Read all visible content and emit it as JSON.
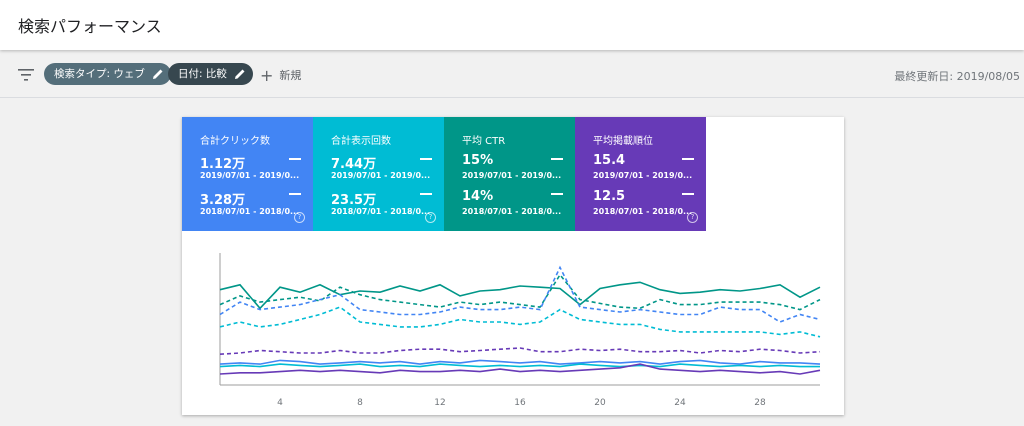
{
  "header": {
    "title": "検索パフォーマンス"
  },
  "toolbar": {
    "filter_chips": [
      {
        "label": "検索タイプ: ウェブ"
      },
      {
        "label": "日付: 比較"
      }
    ],
    "new_label": "新規",
    "last_updated": "最終更新日: 2019/08/05"
  },
  "metrics": [
    {
      "name": "合計クリック数",
      "value1": "1.12万",
      "range1": "2019/07/01 - 2019/0...",
      "value2": "3.28万",
      "range2": "2018/07/01 - 2018/0...",
      "color": "#4285f4"
    },
    {
      "name": "合計表示回数",
      "value1": "7.44万",
      "range1": "2019/07/01 - 2019/0...",
      "value2": "23.5万",
      "range2": "2018/07/01 - 2018/0...",
      "color": "#00bcd4"
    },
    {
      "name": "平均 CTR",
      "value1": "15%",
      "range1": "2019/07/01 - 2019/0...",
      "value2": "14%",
      "range2": "2018/07/01 - 2018/0...",
      "color": "#009688"
    },
    {
      "name": "平均掲載順位",
      "value1": "15.4",
      "range1": "2019/07/01 - 2019/0...",
      "value2": "12.5",
      "range2": "2018/07/01 - 2018/0...",
      "color": "#673ab7"
    }
  ],
  "chart_data": {
    "type": "line",
    "x": [
      1,
      2,
      3,
      4,
      5,
      6,
      7,
      8,
      9,
      10,
      11,
      12,
      13,
      14,
      15,
      16,
      17,
      18,
      19,
      20,
      21,
      22,
      23,
      24,
      25,
      26,
      27,
      28,
      29,
      30,
      31
    ],
    "xticks": [
      "4",
      "8",
      "12",
      "16",
      "20",
      "24",
      "28"
    ],
    "grid": false,
    "series": [
      {
        "color": "#009688",
        "dash": false,
        "values": [
          72,
          76,
          57,
          74,
          70,
          76,
          68,
          71,
          70,
          75,
          71,
          76,
          67,
          71,
          72,
          75,
          74,
          73,
          60,
          73,
          76,
          78,
          72,
          69,
          70,
          72,
          71,
          73,
          76,
          66,
          74
        ]
      },
      {
        "color": "#009688",
        "dash": true,
        "values": [
          60,
          67,
          62,
          64,
          66,
          63,
          74,
          68,
          64,
          62,
          60,
          58,
          62,
          60,
          62,
          60,
          58,
          84,
          64,
          61,
          58,
          57,
          64,
          60,
          60,
          62,
          62,
          62,
          60,
          56,
          64
        ]
      },
      {
        "color": "#4285f4",
        "dash": true,
        "values": [
          52,
          62,
          56,
          58,
          60,
          64,
          68,
          56,
          54,
          52,
          52,
          54,
          58,
          56,
          56,
          58,
          56,
          90,
          58,
          56,
          54,
          56,
          54,
          52,
          52,
          58,
          56,
          56,
          46,
          52,
          48
        ]
      },
      {
        "color": "#00bcd4",
        "dash": true,
        "values": [
          42,
          46,
          42,
          44,
          48,
          52,
          58,
          46,
          44,
          42,
          42,
          44,
          48,
          46,
          46,
          44,
          46,
          56,
          48,
          46,
          44,
          44,
          40,
          38,
          38,
          38,
          38,
          38,
          36,
          38,
          34
        ]
      },
      {
        "color": "#673ab7",
        "dash": true,
        "values": [
          20,
          21,
          23,
          22,
          21,
          21,
          23,
          21,
          21,
          23,
          24,
          24,
          22,
          23,
          24,
          25,
          22,
          22,
          24,
          23,
          24,
          22,
          22,
          23,
          21,
          23,
          22,
          24,
          23,
          21,
          22
        ]
      },
      {
        "color": "#4285f4",
        "dash": false,
        "values": [
          12,
          13,
          12,
          15,
          14,
          12,
          13,
          14,
          13,
          14,
          12,
          14,
          13,
          15,
          14,
          13,
          14,
          12,
          13,
          14,
          13,
          14,
          12,
          14,
          15,
          13,
          12,
          14,
          13,
          13,
          12
        ]
      },
      {
        "color": "#00bcd4",
        "dash": false,
        "values": [
          10,
          11,
          10,
          12,
          11,
          10,
          11,
          12,
          10,
          11,
          10,
          12,
          11,
          10,
          11,
          10,
          11,
          10,
          12,
          11,
          10,
          11,
          10,
          12,
          11,
          10,
          11,
          10,
          11,
          10,
          10
        ]
      },
      {
        "color": "#673ab7",
        "dash": false,
        "values": [
          4,
          5,
          5,
          6,
          7,
          6,
          7,
          6,
          5,
          7,
          6,
          6,
          7,
          6,
          8,
          6,
          7,
          6,
          7,
          8,
          9,
          12,
          8,
          7,
          6,
          7,
          6,
          5,
          6,
          4,
          7
        ]
      }
    ]
  }
}
